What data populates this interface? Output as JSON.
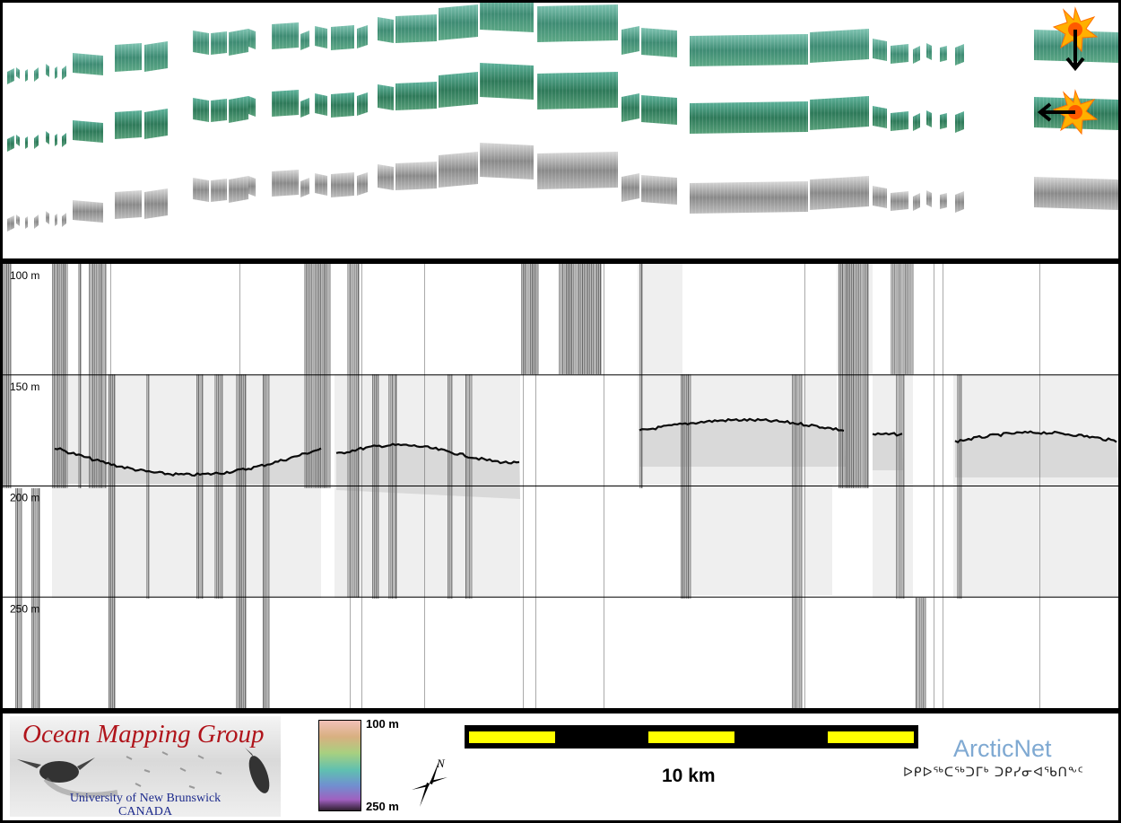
{
  "depth_lanes": [
    "100 m",
    "150 m",
    "200 m",
    "250 m"
  ],
  "colorbar": {
    "top_label": "100 m",
    "bottom_label": "250 m"
  },
  "scale_bar": {
    "label": "10 km",
    "fill_color": "#ffff00"
  },
  "north_arrow": {
    "label": "N"
  },
  "logo_omg": {
    "title": "Ocean Mapping Group",
    "line1": "University of New Brunswick",
    "line2": "CANADA"
  },
  "logo_arcticnet": {
    "name": "ArcticNet",
    "syllabics": "ᐅᑭᐅᖅᑕᖅᑐᒥᒃ ᑐᑭᓯᓂᐊᖃᑎᖕᑦ"
  },
  "colors": {
    "swath_green": "#4f9e86",
    "swath_gray": "#9a9a9a",
    "sun_fill": "#ffb000"
  }
}
